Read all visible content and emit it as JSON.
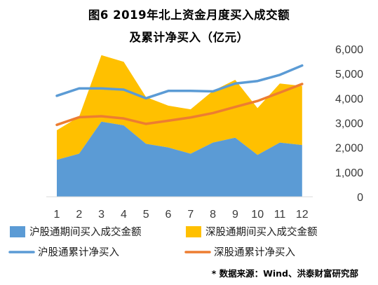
{
  "chart_data": {
    "type": "area+line",
    "title_lines": [
      "图6  2019年北上资金月度买入成交额",
      "及累计净买入（亿元）"
    ],
    "categories": [
      "1",
      "2",
      "3",
      "4",
      "5",
      "6",
      "7",
      "8",
      "9",
      "10",
      "11",
      "12"
    ],
    "ylim": [
      0,
      6000
    ],
    "yticks": [
      "0",
      "1,000",
      "2,000",
      "3,000",
      "4,000",
      "5,000",
      "6,000"
    ],
    "ytick_values": [
      0,
      1000,
      2000,
      3000,
      4000,
      5000,
      6000
    ],
    "grid": false,
    "legend_position": "bottom",
    "series": [
      {
        "name": "沪股通期间买入成交金额",
        "kind": "area",
        "color": "#5b9bd5",
        "values": [
          1500,
          1750,
          3050,
          2900,
          2150,
          2000,
          1750,
          2200,
          2400,
          1700,
          2200,
          2100
        ]
      },
      {
        "name": "深股通期间买入成交金额",
        "kind": "area",
        "color": "#ffc000",
        "values": [
          1200,
          1500,
          2700,
          2580,
          1900,
          1700,
          1800,
          2100,
          2350,
          1900,
          2400,
          2400
        ]
      },
      {
        "name": "沪股通累计净买入",
        "kind": "line",
        "color": "#5b9bd5",
        "values": [
          4100,
          4400,
          4400,
          4350,
          4000,
          4300,
          4300,
          4280,
          4600,
          4700,
          4950,
          5330
        ]
      },
      {
        "name": "深股通累计净买入",
        "kind": "line",
        "color": "#ed7d31",
        "values": [
          2920,
          3230,
          3270,
          3180,
          2960,
          3090,
          3220,
          3400,
          3650,
          3890,
          4230,
          4580
        ]
      }
    ],
    "source": "* 数据来源：Wind、洪泰财富研究部"
  }
}
